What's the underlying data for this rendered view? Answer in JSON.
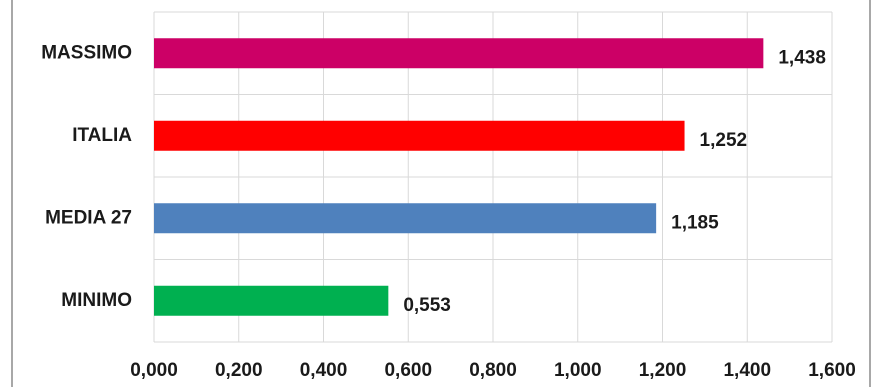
{
  "chart_data": {
    "type": "bar",
    "orientation": "horizontal",
    "categories": [
      "MASSIMO",
      "ITALIA",
      "MEDIA 27",
      "MINIMO"
    ],
    "values": [
      1.438,
      1.252,
      1.185,
      0.553
    ],
    "data_labels": [
      "1,438",
      "1,252",
      "1,185",
      "0,553"
    ],
    "colors": [
      "#cc0066",
      "#ff0000",
      "#4f81bd",
      "#00b050"
    ],
    "xlim": [
      0,
      1.6
    ],
    "x_ticks": [
      0,
      0.2,
      0.4,
      0.6,
      0.8,
      1.0,
      1.2,
      1.4,
      1.6
    ],
    "x_tick_labels": [
      "0,000",
      "0,200",
      "0,400",
      "0,600",
      "0,800",
      "1,000",
      "1,200",
      "1,400",
      "1,600"
    ],
    "grid": true,
    "legend": "none",
    "title": "",
    "xlabel": "",
    "ylabel": ""
  }
}
